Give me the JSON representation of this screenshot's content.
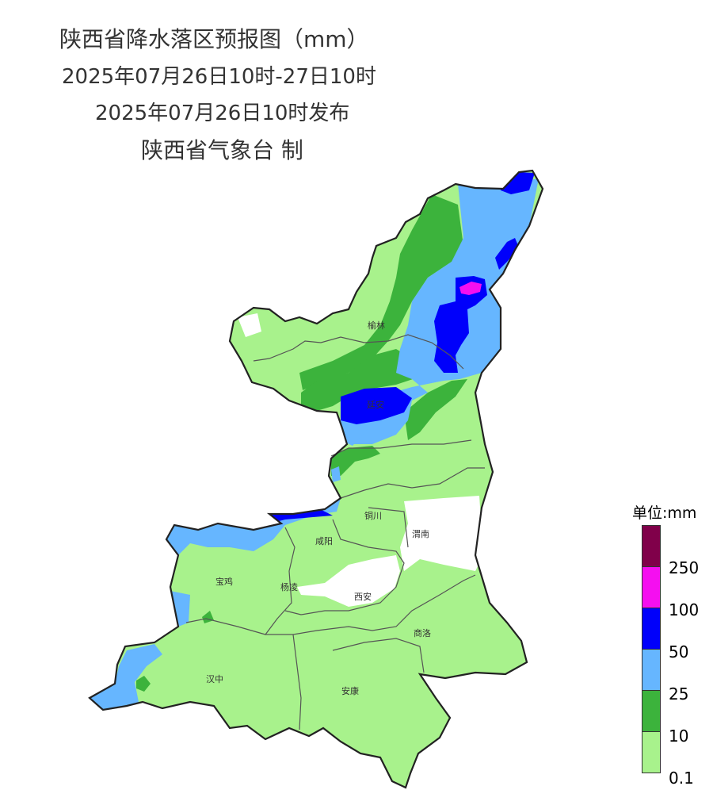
{
  "header": {
    "title": "陕西省降水落区预报图（mm）",
    "period": "2025年07月26日10时-27日10时",
    "issued": "2025年07月26日10时发布",
    "publisher": "陕西省气象台 制"
  },
  "legend": {
    "unit_label": "单位:mm",
    "bins": [
      {
        "label": "",
        "color": "#80004a"
      },
      {
        "label": "250",
        "color": "#f50ff0"
      },
      {
        "label": "100",
        "color": "#0000fb"
      },
      {
        "label": "50",
        "color": "#66b6ff"
      },
      {
        "label": "25",
        "color": "#3cb33c"
      },
      {
        "label": "10",
        "color": "#a8f28c"
      },
      {
        "label": "0.1",
        "color": ""
      }
    ]
  },
  "cities": {
    "yulin": "榆林",
    "yanan": "延安",
    "tongchuan": "铜川",
    "weinan": "渭南",
    "xianyang": "咸阳",
    "baoji": "宝鸡",
    "yangling": "杨凌",
    "xian": "西安",
    "shangluo": "商洛",
    "hanzhong": "汉中",
    "ankang": "安康"
  }
}
